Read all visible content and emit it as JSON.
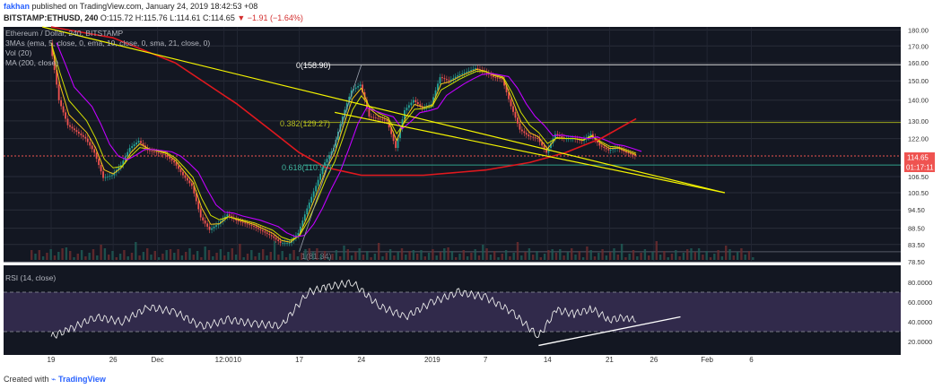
{
  "header": {
    "author": "fakhan",
    "published": "published on TradingView.com, January 24, 2019 18:42:53 +08",
    "symbol": "BITSTAMP:ETHUSD, 240",
    "change_arrow": "▼",
    "change": "−1.91 (−1.64%)",
    "ohlc": "O:115.72 H:115.76 L:114.61 C:114.65"
  },
  "legend": {
    "title": "Ethereum / Dollar, 240, BITSTAMP",
    "mas": "3MAs (ema, 5, close, 0, ema, 10, close, 0, sma, 21, close, 0)",
    "vol": "Vol (20)",
    "ma200": "MA (200, close)"
  },
  "annotations": {
    "fib0": "0(158.90)",
    "fib382": "0.382(129.27)",
    "fib618": "0.618(110.97)",
    "fib1": "1(81.34)"
  },
  "price_badge": {
    "value": "114.65",
    "countdown": "01:17:11"
  },
  "rsi": {
    "title": "RSI (14, close)"
  },
  "footer": {
    "created_with": "Created with",
    "brand": "TradingView"
  },
  "colors": {
    "background": "#131722",
    "ema5": "#f5c518",
    "ema10": "#d0e000",
    "sma21": "#c000ff",
    "ma200": "#e0181e",
    "trendline": "#f4f400",
    "rsi_band": "#4a3a6e",
    "up_candle": "#26a69a",
    "down_candle": "#ef5350"
  },
  "chart_data": [
    {
      "type": "candlestick",
      "title": "Ethereum / Dollar, 240, BITSTAMP",
      "x_ticks": [
        "19",
        "26",
        "Dec",
        "12:00",
        "10",
        "17",
        "24",
        "2019",
        "7",
        "14",
        "21",
        "26",
        "Feb",
        "6"
      ],
      "y_ticks": [
        "180.00",
        "170.00",
        "160.00",
        "150.00",
        "140.00",
        "130.00",
        "122.00",
        "114.65",
        "106.50",
        "100.50",
        "94.50",
        "88.50",
        "83.50",
        "78.50"
      ],
      "y_scale": "log",
      "ylim": [
        78.5,
        182
      ],
      "last_price": 114.65,
      "fib_levels": [
        {
          "label": "0(158.90)",
          "value": 158.9
        },
        {
          "label": "0.382(129.27)",
          "value": 129.27
        },
        {
          "label": "0.618(110.97)",
          "value": 110.97
        },
        {
          "label": "1(81.34)",
          "value": 81.34
        }
      ],
      "trendlines": [
        {
          "from": [
            "Nov 18",
            183
          ],
          "to": [
            "Feb 3",
            100.5
          ]
        },
        {
          "from": [
            "Dec 21",
            134
          ],
          "to": [
            "Feb 3",
            100.5
          ]
        }
      ],
      "price_path": [
        [
          "Nov 19",
          172
        ],
        [
          "Nov 20",
          140
        ],
        [
          "Nov 21",
          128
        ],
        [
          "Nov 23",
          122
        ],
        [
          "Nov 24",
          116
        ],
        [
          "Nov 25",
          106
        ],
        [
          "Nov 26",
          107
        ],
        [
          "Nov 27",
          111
        ],
        [
          "Nov 28",
          118
        ],
        [
          "Nov 29",
          121
        ],
        [
          "Nov 30",
          117
        ],
        [
          "Dec 2",
          115
        ],
        [
          "Dec 3",
          112
        ],
        [
          "Dec 4",
          107
        ],
        [
          "Dec 5",
          103
        ],
        [
          "Dec 6",
          92
        ],
        [
          "Dec 7",
          88
        ],
        [
          "Dec 8",
          90
        ],
        [
          "Dec 9",
          93
        ],
        [
          "Dec 10",
          91
        ],
        [
          "Dec 12",
          89
        ],
        [
          "Dec 14",
          86
        ],
        [
          "Dec 15",
          84
        ],
        [
          "Dec 16",
          84
        ],
        [
          "Dec 17",
          87
        ],
        [
          "Dec 18",
          95
        ],
        [
          "Dec 19",
          103
        ],
        [
          "Dec 20",
          112
        ],
        [
          "Dec 21",
          118
        ],
        [
          "Dec 22",
          132
        ],
        [
          "Dec 23",
          145
        ],
        [
          "Dec 24",
          148
        ],
        [
          "Dec 25",
          132
        ],
        [
          "Dec 26",
          131
        ],
        [
          "Dec 27",
          130
        ],
        [
          "Dec 28",
          118
        ],
        [
          "Dec 29",
          135
        ],
        [
          "Dec 30",
          140
        ],
        [
          "Dec 31",
          136
        ],
        [
          "Jan 1",
          138
        ],
        [
          "Jan 2",
          152
        ],
        [
          "Jan 3",
          150
        ],
        [
          "Jan 4",
          153
        ],
        [
          "Jan 5",
          155
        ],
        [
          "Jan 6",
          157
        ],
        [
          "Jan 7",
          155
        ],
        [
          "Jan 8",
          152
        ],
        [
          "Jan 9",
          151
        ],
        [
          "Jan 10",
          137
        ],
        [
          "Jan 11",
          126
        ],
        [
          "Jan 12",
          123
        ],
        [
          "Jan 13",
          122
        ],
        [
          "Jan 14",
          116
        ],
        [
          "Jan 15",
          124
        ],
        [
          "Jan 16",
          122
        ],
        [
          "Jan 17",
          122
        ],
        [
          "Jan 18",
          121
        ],
        [
          "Jan 19",
          124
        ],
        [
          "Jan 20",
          119
        ],
        [
          "Jan 21",
          117
        ],
        [
          "Jan 22",
          118
        ],
        [
          "Jan 23",
          116
        ],
        [
          "Jan 24",
          114.65
        ]
      ],
      "ma200_path": [
        [
          "Nov 19",
          185
        ],
        [
          "Nov 26",
          175
        ],
        [
          "Dec 3",
          160
        ],
        [
          "Dec 10",
          138
        ],
        [
          "Dec 14",
          125
        ],
        [
          "Dec 17",
          116
        ],
        [
          "Dec 20",
          110
        ],
        [
          "Dec 24",
          107
        ],
        [
          "Dec 31",
          107
        ],
        [
          "Jan 7",
          109
        ],
        [
          "Jan 12",
          112
        ],
        [
          "Jan 16",
          116
        ],
        [
          "Jan 20",
          122
        ],
        [
          "Jan 24",
          131
        ]
      ]
    },
    {
      "type": "line",
      "title": "RSI (14, close)",
      "y_ticks": [
        "80.0000",
        "60.0000",
        "40.0000",
        "20.0000"
      ],
      "ylim": [
        10,
        90
      ],
      "band": [
        30,
        70
      ],
      "last_value": 40,
      "rsi_path": [
        [
          "Nov 19",
          25
        ],
        [
          "Nov 21",
          32
        ],
        [
          "Nov 24",
          45
        ],
        [
          "Nov 27",
          40
        ],
        [
          "Nov 30",
          55
        ],
        [
          "Dec 3",
          50
        ],
        [
          "Dec 6",
          35
        ],
        [
          "Dec 9",
          42
        ],
        [
          "Dec 12",
          38
        ],
        [
          "Dec 15",
          36
        ],
        [
          "Dec 18",
          70
        ],
        [
          "Dec 20",
          75
        ],
        [
          "Dec 23",
          80
        ],
        [
          "Dec 26",
          56
        ],
        [
          "Dec 29",
          45
        ],
        [
          "Jan 1",
          60
        ],
        [
          "Jan 4",
          70
        ],
        [
          "Jan 7",
          65
        ],
        [
          "Jan 10",
          50
        ],
        [
          "Jan 13",
          25
        ],
        [
          "Jan 15",
          52
        ],
        [
          "Jan 17",
          48
        ],
        [
          "Jan 19",
          53
        ],
        [
          "Jan 21",
          42
        ],
        [
          "Jan 23",
          45
        ],
        [
          "Jan 24",
          40
        ]
      ],
      "trendline": {
        "from": [
          "Jan 13",
          16
        ],
        "to": [
          "Jan 29",
          45
        ]
      }
    }
  ]
}
